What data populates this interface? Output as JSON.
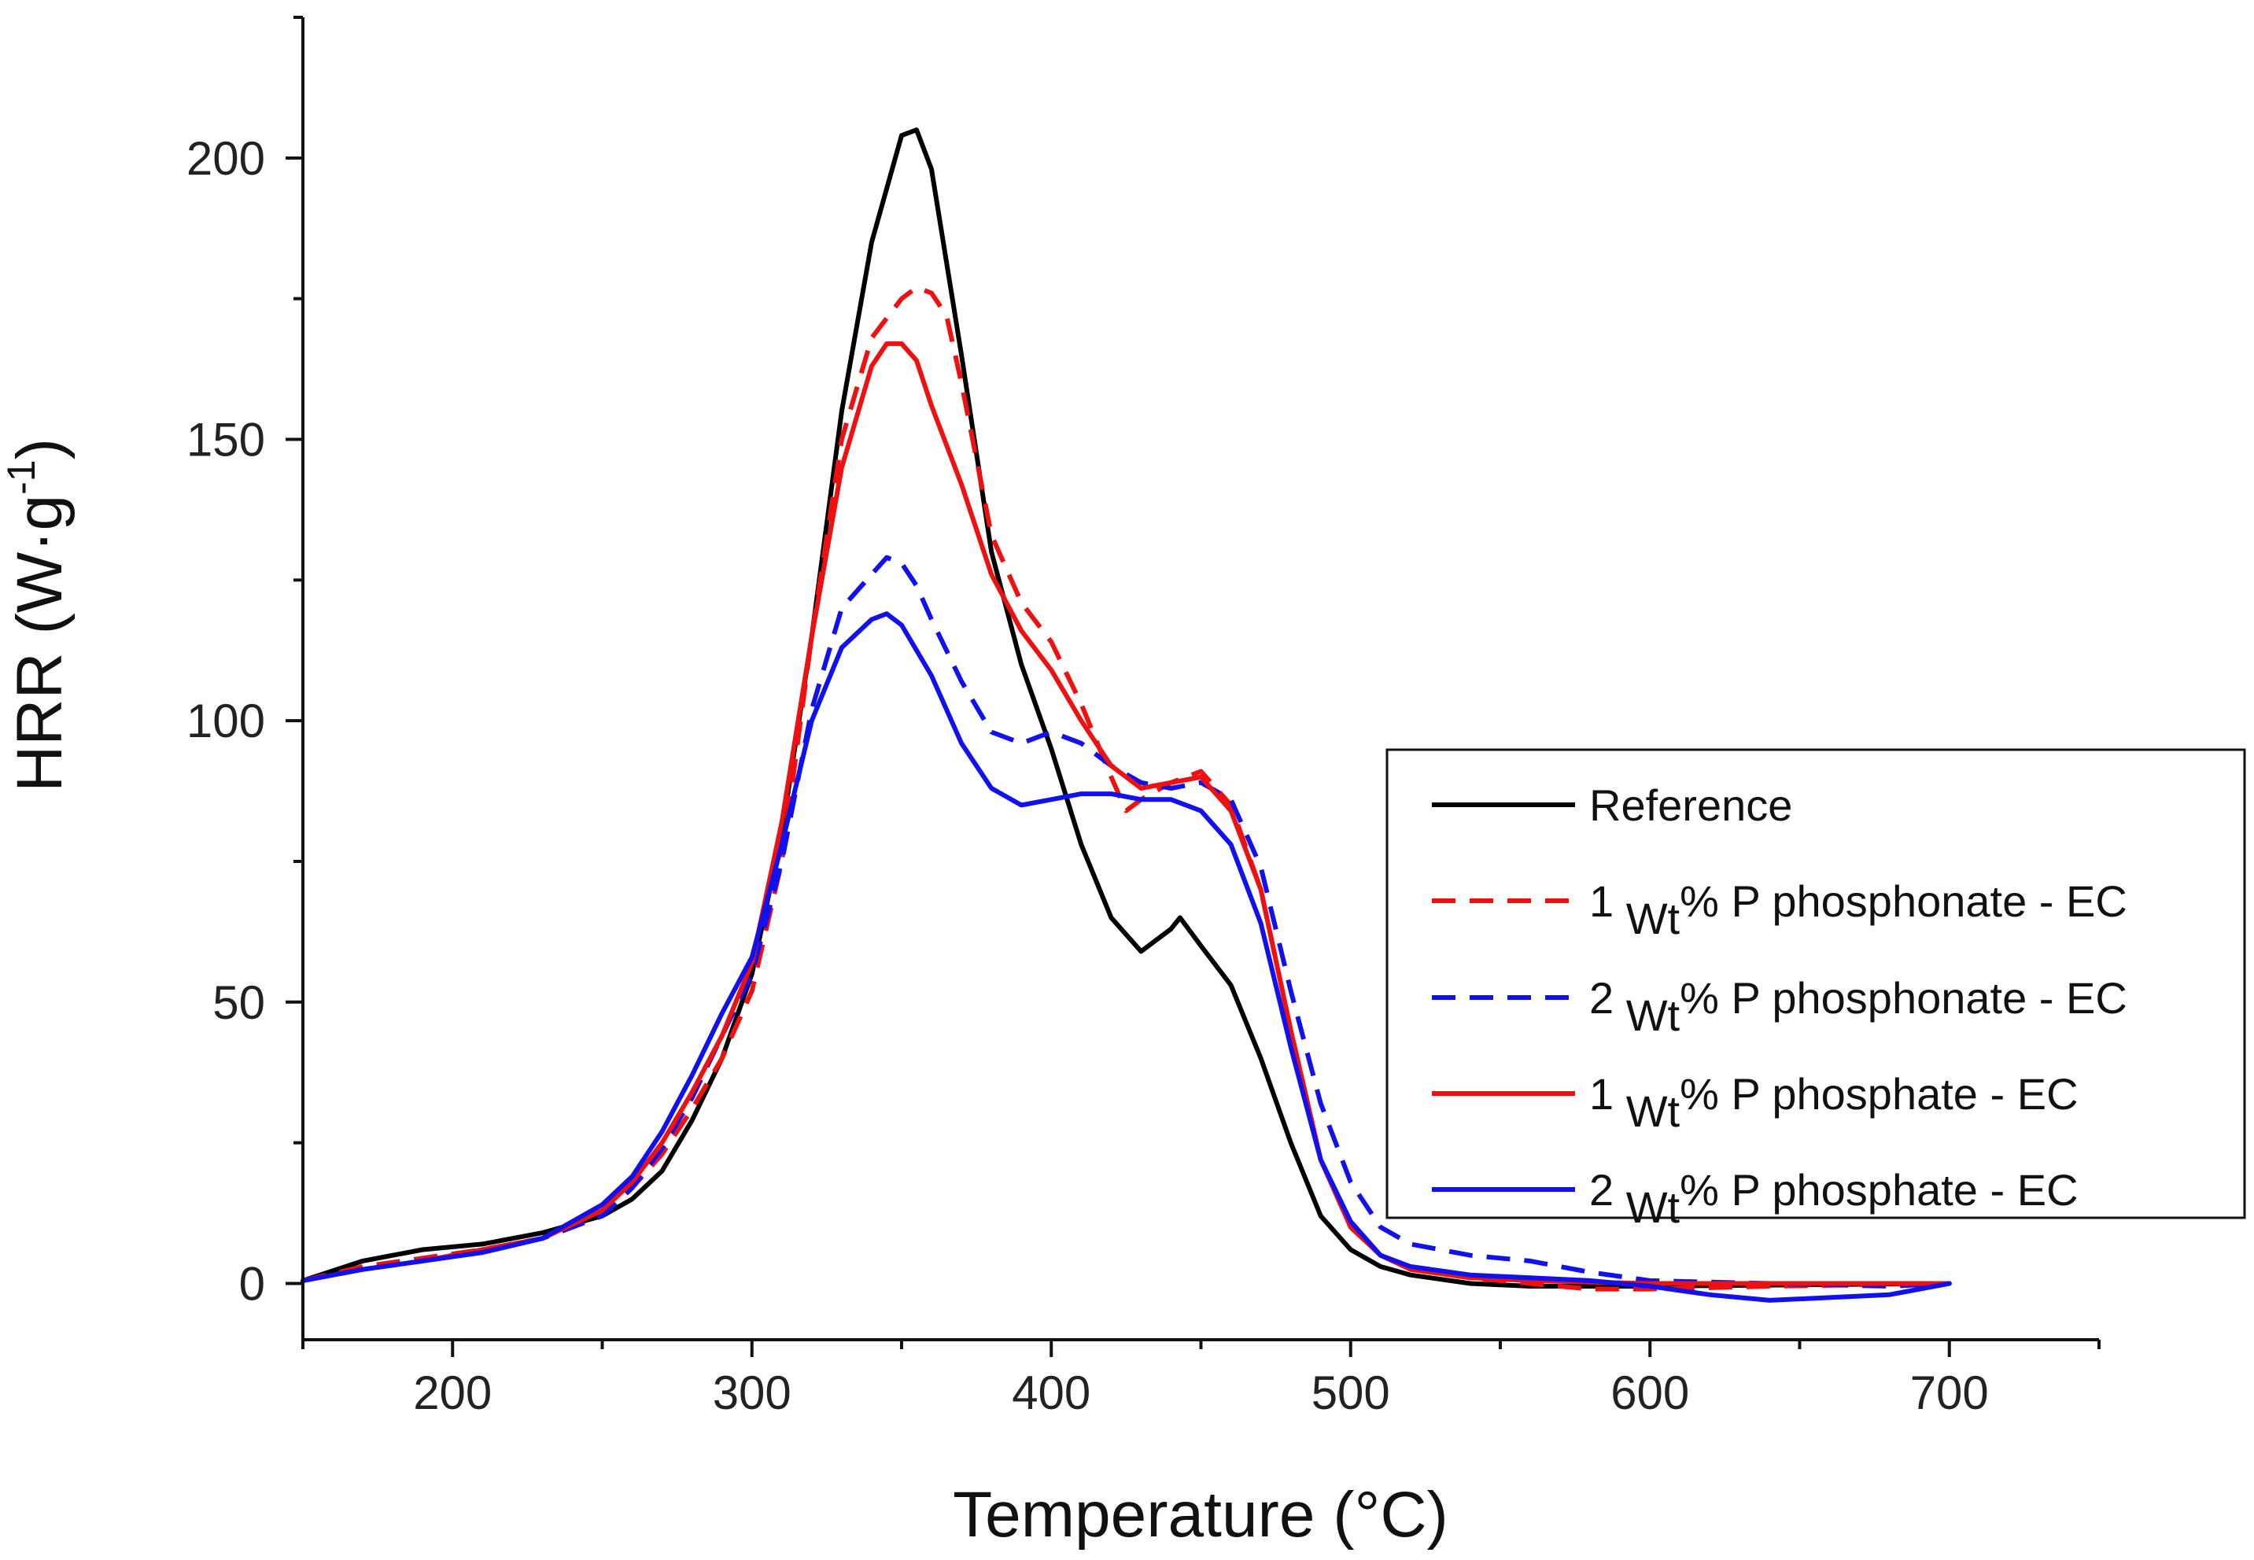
{
  "chart_data": {
    "type": "line",
    "title": "",
    "xlabel": "Temperature (°C)",
    "ylabel_parts": {
      "main": "HRR (W·g",
      "sup": "-1",
      "close": ")"
    },
    "xlim": [
      150,
      750
    ],
    "ylim": [
      -10,
      225
    ],
    "xticks": [
      200,
      300,
      400,
      500,
      600,
      700
    ],
    "yticks": [
      0,
      50,
      100,
      150,
      200
    ],
    "x_minor_step": 50,
    "y_minor_step": 25,
    "grid": false,
    "legend_position": "right",
    "series": [
      {
        "name": "Reference",
        "color": "#000000",
        "dash": "solid",
        "label_prefix": "Reference",
        "label_sub": "",
        "label_suffix": "",
        "points": [
          [
            150,
            0.5
          ],
          [
            170,
            4
          ],
          [
            190,
            6
          ],
          [
            210,
            7
          ],
          [
            230,
            9
          ],
          [
            250,
            12
          ],
          [
            260,
            15
          ],
          [
            270,
            20
          ],
          [
            280,
            29
          ],
          [
            290,
            40
          ],
          [
            300,
            55
          ],
          [
            310,
            80
          ],
          [
            320,
            115
          ],
          [
            330,
            155
          ],
          [
            340,
            185
          ],
          [
            350,
            204
          ],
          [
            355,
            205
          ],
          [
            360,
            198
          ],
          [
            370,
            165
          ],
          [
            380,
            130
          ],
          [
            390,
            110
          ],
          [
            400,
            95
          ],
          [
            410,
            78
          ],
          [
            420,
            65
          ],
          [
            430,
            59
          ],
          [
            440,
            63
          ],
          [
            443,
            65
          ],
          [
            450,
            60
          ],
          [
            460,
            53
          ],
          [
            470,
            40
          ],
          [
            480,
            25
          ],
          [
            490,
            12
          ],
          [
            500,
            6
          ],
          [
            510,
            3
          ],
          [
            520,
            1.5
          ],
          [
            540,
            0
          ],
          [
            560,
            -0.5
          ],
          [
            600,
            -0.5
          ],
          [
            640,
            -0.3
          ],
          [
            700,
            0
          ]
        ]
      },
      {
        "name": "1 wt% P phosphonate - EC",
        "color": "#ee1111",
        "dash": "dashed",
        "label_prefix": "1 ",
        "label_sub": "Wt",
        "label_suffix": "% P phosphonate - EC",
        "points": [
          [
            150,
            0.5
          ],
          [
            170,
            3
          ],
          [
            190,
            4.5
          ],
          [
            210,
            6
          ],
          [
            230,
            8
          ],
          [
            250,
            12
          ],
          [
            260,
            17
          ],
          [
            270,
            23
          ],
          [
            280,
            31
          ],
          [
            290,
            40
          ],
          [
            300,
            52
          ],
          [
            310,
            75
          ],
          [
            320,
            115
          ],
          [
            330,
            150
          ],
          [
            340,
            168
          ],
          [
            350,
            175
          ],
          [
            355,
            177
          ],
          [
            360,
            176
          ],
          [
            365,
            172
          ],
          [
            370,
            160
          ],
          [
            380,
            133
          ],
          [
            390,
            121
          ],
          [
            400,
            114
          ],
          [
            410,
            103
          ],
          [
            420,
            90
          ],
          [
            425,
            84
          ],
          [
            430,
            86
          ],
          [
            440,
            89
          ],
          [
            450,
            91
          ],
          [
            460,
            85
          ],
          [
            470,
            70
          ],
          [
            480,
            45
          ],
          [
            490,
            22
          ],
          [
            500,
            10
          ],
          [
            510,
            5
          ],
          [
            520,
            2.5
          ],
          [
            540,
            1
          ],
          [
            560,
            0
          ],
          [
            580,
            -1
          ],
          [
            600,
            -1
          ],
          [
            640,
            -0.5
          ],
          [
            700,
            0
          ]
        ]
      },
      {
        "name": "2 wt% P phosphonate - EC",
        "color": "#1111ee",
        "dash": "dashed",
        "label_prefix": "2 ",
        "label_sub": "Wt",
        "label_suffix": "% P phosphonate - EC",
        "points": [
          [
            150,
            0.5
          ],
          [
            170,
            2.5
          ],
          [
            190,
            4
          ],
          [
            210,
            6
          ],
          [
            230,
            8
          ],
          [
            250,
            12
          ],
          [
            260,
            17
          ],
          [
            270,
            24
          ],
          [
            280,
            33
          ],
          [
            290,
            44
          ],
          [
            300,
            55
          ],
          [
            310,
            75
          ],
          [
            320,
            102
          ],
          [
            330,
            120
          ],
          [
            340,
            126
          ],
          [
            345,
            129
          ],
          [
            350,
            128
          ],
          [
            355,
            124
          ],
          [
            360,
            118
          ],
          [
            370,
            107
          ],
          [
            380,
            98
          ],
          [
            390,
            96
          ],
          [
            400,
            98
          ],
          [
            410,
            96
          ],
          [
            420,
            92
          ],
          [
            430,
            89
          ],
          [
            440,
            88
          ],
          [
            450,
            89
          ],
          [
            460,
            86
          ],
          [
            470,
            74
          ],
          [
            480,
            52
          ],
          [
            490,
            32
          ],
          [
            500,
            18
          ],
          [
            510,
            10
          ],
          [
            520,
            7
          ],
          [
            540,
            5
          ],
          [
            560,
            4
          ],
          [
            580,
            2
          ],
          [
            600,
            0.5
          ],
          [
            640,
            0
          ],
          [
            680,
            -0.5
          ],
          [
            700,
            0
          ]
        ]
      },
      {
        "name": "1 wt% P phosphate - EC",
        "color": "#ee1111",
        "dash": "solid",
        "label_prefix": "1 ",
        "label_sub": "Wt",
        "label_suffix": "% P phosphate - EC",
        "points": [
          [
            150,
            0.5
          ],
          [
            170,
            2.5
          ],
          [
            190,
            4
          ],
          [
            210,
            6
          ],
          [
            230,
            8
          ],
          [
            250,
            13
          ],
          [
            260,
            18
          ],
          [
            270,
            25
          ],
          [
            280,
            34
          ],
          [
            290,
            44
          ],
          [
            300,
            57
          ],
          [
            310,
            82
          ],
          [
            320,
            115
          ],
          [
            330,
            145
          ],
          [
            340,
            163
          ],
          [
            345,
            167
          ],
          [
            350,
            167
          ],
          [
            355,
            164
          ],
          [
            360,
            156
          ],
          [
            370,
            142
          ],
          [
            380,
            126
          ],
          [
            390,
            116
          ],
          [
            400,
            109
          ],
          [
            410,
            100
          ],
          [
            420,
            92
          ],
          [
            430,
            88
          ],
          [
            440,
            89
          ],
          [
            450,
            90
          ],
          [
            460,
            84
          ],
          [
            470,
            70
          ],
          [
            480,
            45
          ],
          [
            490,
            22
          ],
          [
            500,
            10
          ],
          [
            510,
            5
          ],
          [
            520,
            2.5
          ],
          [
            540,
            1
          ],
          [
            560,
            0.5
          ],
          [
            600,
            0
          ],
          [
            650,
            0
          ],
          [
            700,
            0
          ]
        ]
      },
      {
        "name": "2 wt% P phosphate - EC",
        "color": "#1111ee",
        "dash": "solid",
        "label_prefix": "2 ",
        "label_sub": "Wt",
        "label_suffix": "% P phosphate - EC",
        "points": [
          [
            150,
            0.5
          ],
          [
            170,
            2.5
          ],
          [
            190,
            4
          ],
          [
            210,
            5.5
          ],
          [
            230,
            8
          ],
          [
            250,
            14
          ],
          [
            260,
            19
          ],
          [
            270,
            27
          ],
          [
            280,
            37
          ],
          [
            290,
            48
          ],
          [
            300,
            58
          ],
          [
            310,
            78
          ],
          [
            320,
            100
          ],
          [
            330,
            113
          ],
          [
            340,
            118
          ],
          [
            345,
            119
          ],
          [
            350,
            117
          ],
          [
            360,
            108
          ],
          [
            370,
            96
          ],
          [
            380,
            88
          ],
          [
            390,
            85
          ],
          [
            400,
            86
          ],
          [
            410,
            87
          ],
          [
            420,
            87
          ],
          [
            430,
            86
          ],
          [
            440,
            86
          ],
          [
            450,
            84
          ],
          [
            460,
            78
          ],
          [
            470,
            64
          ],
          [
            480,
            42
          ],
          [
            490,
            22
          ],
          [
            500,
            11
          ],
          [
            510,
            5
          ],
          [
            520,
            3
          ],
          [
            540,
            1.5
          ],
          [
            560,
            1
          ],
          [
            580,
            0.5
          ],
          [
            600,
            -0.5
          ],
          [
            620,
            -2
          ],
          [
            640,
            -3
          ],
          [
            660,
            -2.5
          ],
          [
            680,
            -2
          ],
          [
            700,
            0
          ]
        ]
      }
    ]
  }
}
